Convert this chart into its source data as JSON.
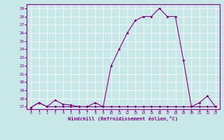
{
  "xlabel": "Windchill (Refroidissement éolien,°C)",
  "xlim": [
    -0.5,
    23.5
  ],
  "ylim": [
    16.7,
    29.5
  ],
  "yticks": [
    17,
    18,
    19,
    20,
    21,
    22,
    23,
    24,
    25,
    26,
    27,
    28,
    29
  ],
  "xticks": [
    0,
    1,
    2,
    3,
    4,
    5,
    6,
    7,
    8,
    9,
    10,
    11,
    12,
    13,
    14,
    15,
    16,
    17,
    18,
    19,
    20,
    21,
    22,
    23
  ],
  "line_color": "#880088",
  "bg_color": "#c8e8e8",
  "grid_color": "#ffffff",
  "series1_y": [
    16.9,
    17.5,
    17.0,
    17.0,
    17.0,
    17.0,
    17.0,
    17.0,
    17.0,
    17.0,
    17.0,
    17.0,
    17.0,
    17.0,
    17.0,
    17.0,
    17.0,
    17.0,
    17.0,
    17.0,
    17.0,
    17.0,
    17.0,
    17.0
  ],
  "series2_y": [
    16.9,
    17.5,
    17.0,
    17.8,
    17.3,
    17.2,
    17.0,
    17.0,
    17.5,
    17.0,
    22.0,
    24.0,
    26.0,
    27.5,
    28.0,
    28.0,
    29.0,
    28.0,
    28.0,
    22.7,
    17.0,
    17.5,
    18.3,
    17.0
  ]
}
